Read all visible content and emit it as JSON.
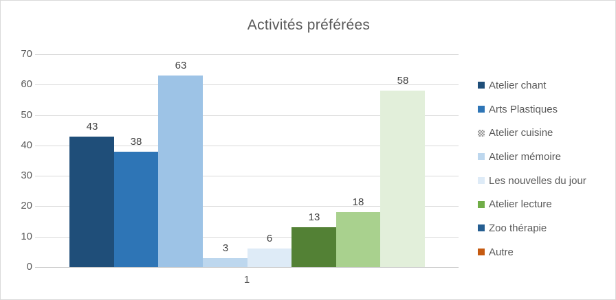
{
  "title": "Activités préférées",
  "colors": {
    "grid": "#d9d9d9",
    "axis_text": "#595959",
    "title_text": "#595959",
    "value_label_text": "#404040",
    "background": "#ffffff",
    "border": "#d9d9d9"
  },
  "chart_data": {
    "type": "bar",
    "title": "Activités préférées",
    "categories": [
      "1"
    ],
    "xlabel": "",
    "ylabel": "",
    "ylim": [
      0,
      70
    ],
    "yticks": [
      0,
      10,
      20,
      30,
      40,
      50,
      60,
      70
    ],
    "grid": true,
    "legend_position": "right",
    "data_labels": true,
    "series": [
      {
        "name": "Atelier chant",
        "values": [
          43
        ],
        "bar_color": "#1F4E79",
        "legend_color": "#1F4E79",
        "legend_pattern": "solid"
      },
      {
        "name": "Arts Plastiques",
        "values": [
          38
        ],
        "bar_color": "#2E75B6",
        "legend_color": "#2E75B6",
        "legend_pattern": "solid"
      },
      {
        "name": "Atelier cuisine",
        "values": [
          63
        ],
        "bar_color": "#9DC3E6",
        "legend_color": "#A6A6A6",
        "legend_pattern": "checker"
      },
      {
        "name": "Atelier mémoire",
        "values": [
          3
        ],
        "bar_color": "#BDD7EE",
        "legend_color": "#BDD7EE",
        "legend_pattern": "solid"
      },
      {
        "name": "Les nouvelles du jour",
        "values": [
          6
        ],
        "bar_color": "#DEEBF7",
        "legend_color": "#DEEBF7",
        "legend_pattern": "solid"
      },
      {
        "name": "Atelier lecture",
        "values": [
          13
        ],
        "bar_color": "#538135",
        "legend_color": "#70AD47",
        "legend_pattern": "solid"
      },
      {
        "name": "Zoo thérapie",
        "values": [
          18
        ],
        "bar_color": "#A9D18E",
        "legend_color": "#255E91",
        "legend_pattern": "solid"
      },
      {
        "name": "Autre",
        "values": [
          58
        ],
        "bar_color": "#E2EFDA",
        "legend_color": "#C55A11",
        "legend_pattern": "solid"
      }
    ]
  }
}
